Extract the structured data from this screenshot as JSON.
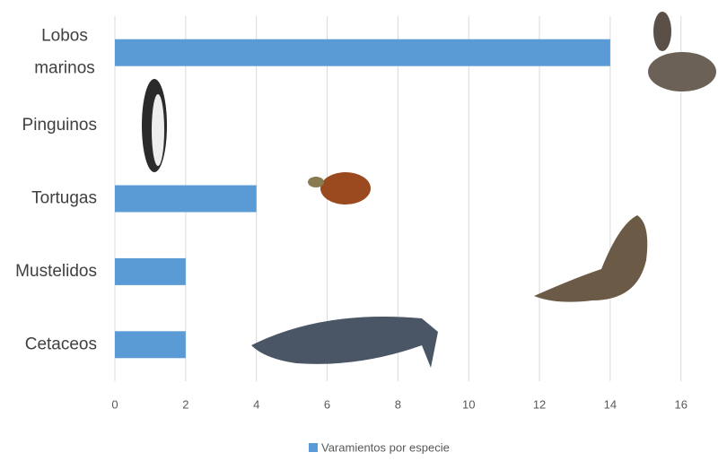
{
  "chart_data": {
    "type": "bar",
    "orientation": "horizontal",
    "categories": [
      "Lobos marinos",
      "Pinguinos",
      "Tortugas",
      "Mustelidos",
      "Cetaceos"
    ],
    "series": [
      {
        "name": "Varamientos por especie",
        "color": "#5b9bd5",
        "values": [
          14,
          0,
          4,
          2,
          2
        ]
      }
    ],
    "xlim": [
      0,
      17.3
    ],
    "xticks": [
      0,
      2,
      4,
      6,
      8,
      10,
      12,
      14,
      16
    ],
    "grid": true,
    "legend": "bottom"
  }
}
